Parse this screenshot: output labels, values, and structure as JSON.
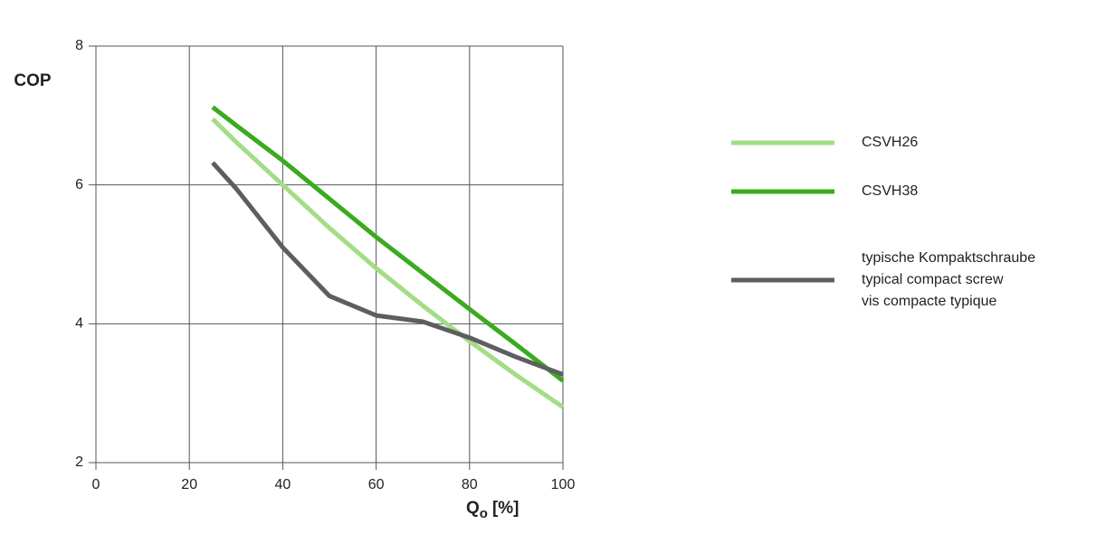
{
  "chart_data": {
    "type": "line",
    "y_label": "COP",
    "x_label": "Q",
    "x_label_subscript": "o",
    "x_label_unit": "[%]",
    "x": [
      25,
      30,
      40,
      50,
      60,
      70,
      80,
      90,
      100
    ],
    "series": [
      {
        "name": "CSVH26",
        "color": "#a3dd86",
        "values": [
          6.95,
          6.62,
          6.0,
          5.38,
          4.8,
          4.26,
          3.75,
          3.26,
          2.8
        ]
      },
      {
        "name": "CSVH38",
        "color": "#3aab1f",
        "values": [
          7.12,
          6.86,
          6.35,
          5.8,
          5.25,
          4.73,
          4.21,
          3.7,
          3.18
        ]
      },
      {
        "name": "typische Kompaktschraube\ntypical compact screw\nvis compacte typique",
        "color": "#5e5e60",
        "values": [
          6.32,
          5.95,
          5.1,
          4.4,
          4.12,
          4.03,
          3.8,
          3.52,
          3.27
        ]
      }
    ],
    "xlim": [
      0,
      100
    ],
    "xticks": [
      0,
      20,
      40,
      60,
      80,
      100
    ],
    "ylim": [
      2,
      8
    ],
    "yticks": [
      2,
      4,
      6,
      8
    ],
    "grid": true,
    "legend": "right"
  }
}
